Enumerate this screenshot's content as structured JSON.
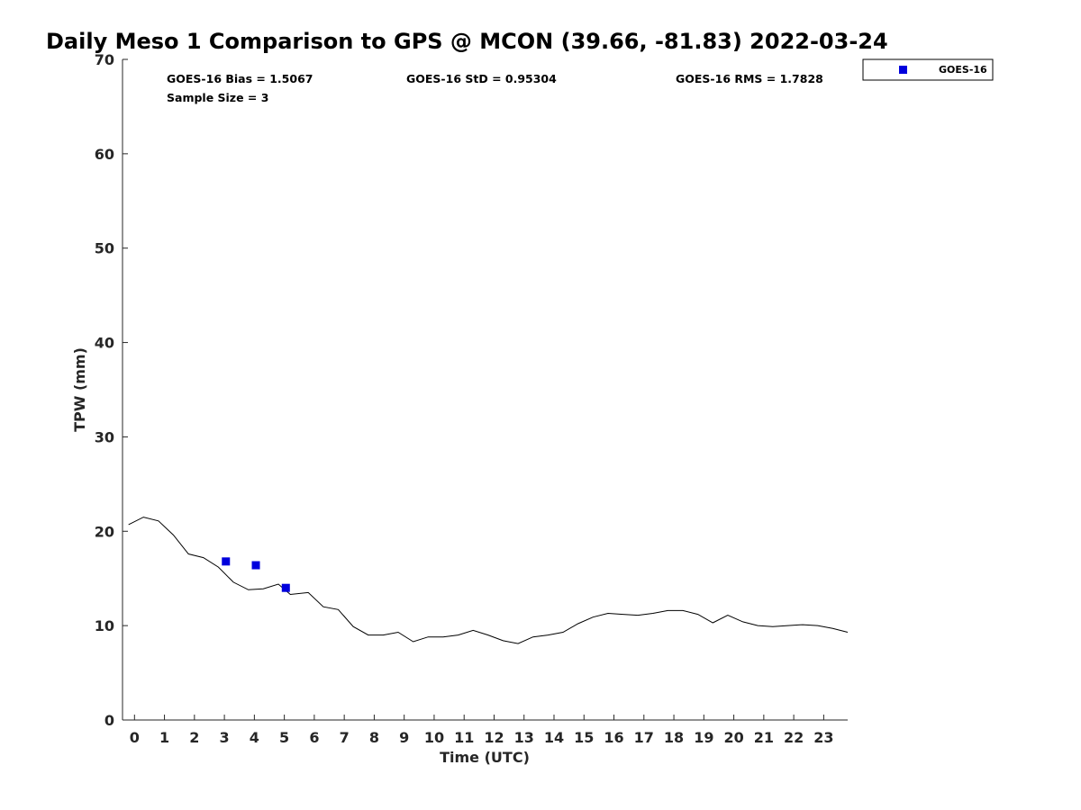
{
  "chart_data": {
    "type": "line",
    "title": "Daily Meso 1 Comparison to GPS @ MCON (39.66, -81.83) 2022-03-24",
    "xlabel": "Time (UTC)",
    "ylabel": "TPW (mm)",
    "xlim": [
      -0.4,
      23.8
    ],
    "ylim": [
      0,
      70
    ],
    "x_ticks": [
      0,
      1,
      2,
      3,
      4,
      5,
      6,
      7,
      8,
      9,
      10,
      11,
      12,
      13,
      14,
      15,
      16,
      17,
      18,
      19,
      20,
      21,
      22,
      23
    ],
    "y_ticks": [
      0,
      10,
      20,
      30,
      40,
      50,
      60,
      70
    ],
    "grid": false,
    "legend_position": "top-right",
    "stats": {
      "bias": "GOES-16 Bias = 1.5067",
      "std": "GOES-16 StD = 0.95304",
      "rms": "GOES-16 RMS = 1.7828",
      "sample": "Sample Size = 3"
    },
    "series": [
      {
        "kind": "line",
        "color": "#000000",
        "x": [
          -0.2,
          0.3,
          0.8,
          1.3,
          1.8,
          2.3,
          2.8,
          3.3,
          3.8,
          4.3,
          4.8,
          5.2,
          5.8,
          6.3,
          6.8,
          7.3,
          7.8,
          8.3,
          8.8,
          9.3,
          9.8,
          10.3,
          10.8,
          11.3,
          11.8,
          12.3,
          12.8,
          13.3,
          13.8,
          14.3,
          14.8,
          15.3,
          15.8,
          16.3,
          16.8,
          17.3,
          17.8,
          18.3,
          18.8,
          19.3,
          19.8,
          20.3,
          20.8,
          21.3,
          21.8,
          22.3,
          22.8,
          23.3,
          23.8
        ],
        "values": [
          20.7,
          21.5,
          21.1,
          19.6,
          17.6,
          17.2,
          16.2,
          14.6,
          13.8,
          13.9,
          14.4,
          13.3,
          13.5,
          12.0,
          11.7,
          9.9,
          9.0,
          9.0,
          9.3,
          8.3,
          8.8,
          8.8,
          9.0,
          9.5,
          9.0,
          8.4,
          8.1,
          8.8,
          9.0,
          9.3,
          10.2,
          10.9,
          11.3,
          11.2,
          11.1,
          11.3,
          11.6,
          11.6,
          11.2,
          10.3,
          11.1,
          10.4,
          10.0,
          9.9,
          10.0,
          10.1,
          10.0,
          9.7,
          9.3
        ]
      },
      {
        "kind": "scatter",
        "name": "GOES-16",
        "color": "#0000dd",
        "x": [
          3.05,
          4.05,
          5.05
        ],
        "values": [
          16.8,
          16.4,
          14.0
        ]
      }
    ]
  }
}
